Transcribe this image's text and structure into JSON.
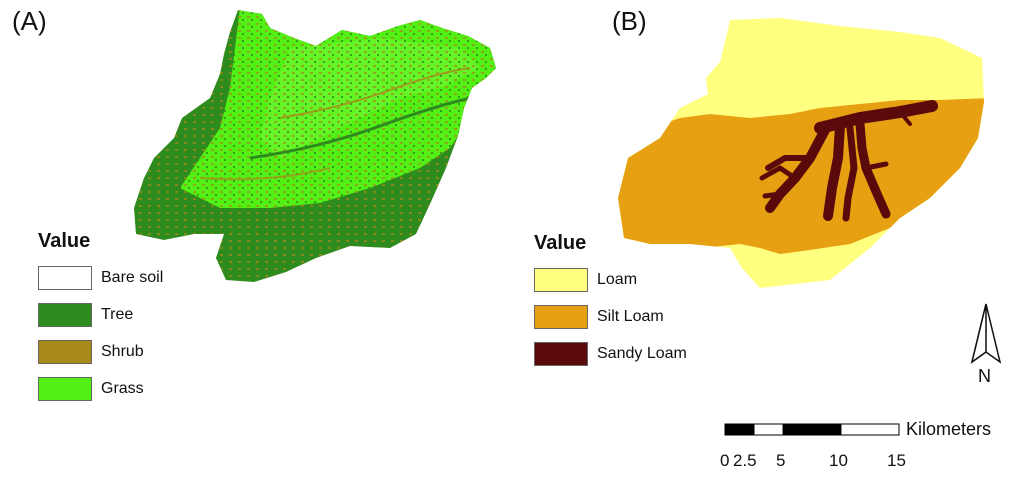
{
  "panel_a": {
    "label": "(A)",
    "legend": {
      "title": "Value",
      "items": [
        {
          "label": "Bare soil",
          "color": "#ffffff"
        },
        {
          "label": "Tree",
          "color": "#2e8b1e"
        },
        {
          "label": "Shrub",
          "color": "#a8891a"
        },
        {
          "label": "Grass",
          "color": "#52f014"
        }
      ]
    }
  },
  "panel_b": {
    "label": "(B)",
    "legend": {
      "title": "Value",
      "items": [
        {
          "label": "Loam",
          "color": "#ffff80"
        },
        {
          "label": "Silt Loam",
          "color": "#e6a012"
        },
        {
          "label": "Sandy Loam",
          "color": "#5a0a0a"
        }
      ]
    }
  },
  "north": {
    "letter": "N",
    "icon": "north-arrow-icon"
  },
  "scale": {
    "units": "Kilometers",
    "ticks": [
      "0",
      "2.5",
      "5",
      "10",
      "15"
    ]
  }
}
